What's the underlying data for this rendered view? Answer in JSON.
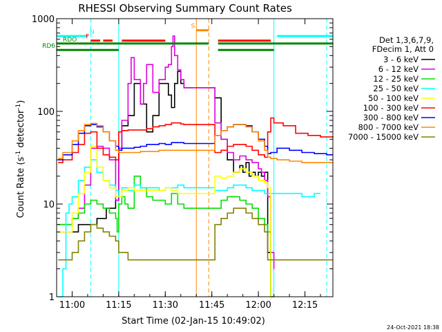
{
  "chart_data": {
    "type": "line",
    "title": "RHESSI Observing Summary Count Rates",
    "xlabel": "Start Time (02-Jan-15 10:49:02)",
    "ylabel_main": "Count Rate (s",
    "ylabel_sup1": "-1",
    "ylabel_mid": " detector",
    "ylabel_sup2": "-1",
    "ylabel_end": ")",
    "y_scale": "log",
    "ylim": [
      1,
      1000
    ],
    "xlim_minutes": [
      -5,
      84
    ],
    "x_ticks": [
      {
        "t": 0,
        "label": "11:00"
      },
      {
        "t": 15,
        "label": "11:15"
      },
      {
        "t": 30,
        "label": "11:30"
      },
      {
        "t": 45,
        "label": "11:45"
      },
      {
        "t": 60,
        "label": "12:00"
      },
      {
        "t": 75,
        "label": "12:15"
      }
    ],
    "y_ticks": [
      {
        "v": 1,
        "label": "1"
      },
      {
        "v": 10,
        "label": "10"
      },
      {
        "v": 100,
        "label": "100"
      },
      {
        "v": 1000,
        "label": "1000"
      }
    ],
    "legend_header": [
      "Det 1,3,6,7,9,",
      "FDecim 1, Att 0"
    ],
    "series": [
      {
        "name": "3 - 6 keV",
        "color": "#000000",
        "x": [
          -4.5,
          2,
          5,
          8,
          11,
          13,
          14,
          15,
          16,
          18,
          20,
          22,
          24,
          26,
          28,
          30,
          31,
          32,
          33,
          34,
          35,
          36,
          46,
          48,
          50,
          52,
          54,
          55,
          56,
          57,
          58,
          59,
          60,
          61,
          62,
          63,
          64,
          65
        ],
        "y": [
          5,
          6,
          6,
          7,
          9,
          9,
          11,
          40,
          70,
          90,
          200,
          120,
          60,
          90,
          200,
          200,
          150,
          110,
          200,
          270,
          200,
          180,
          140,
          50,
          30,
          22,
          26,
          22,
          28,
          20,
          22,
          20,
          22,
          20,
          22,
          3,
          1,
          1
        ]
      },
      {
        "name": "6 - 12 keV",
        "color": "#dd00dd",
        "x": [
          -4.5,
          0,
          2,
          4,
          6,
          8,
          10,
          12,
          14,
          15,
          16,
          18,
          19,
          20,
          22,
          23,
          24,
          26,
          28,
          30,
          31,
          32,
          32.5,
          33,
          34,
          35,
          36,
          46,
          48,
          50,
          52,
          54,
          56,
          58,
          60,
          61,
          62,
          63,
          64,
          65
        ],
        "y": [
          6,
          7,
          9,
          16,
          40,
          42,
          40,
          30,
          11,
          40,
          80,
          200,
          380,
          220,
          120,
          200,
          320,
          160,
          220,
          300,
          320,
          500,
          650,
          400,
          280,
          220,
          180,
          75,
          50,
          36,
          30,
          33,
          30,
          28,
          24,
          22,
          18,
          12,
          3,
          2
        ]
      },
      {
        "name": "12 - 25 keV",
        "color": "#00dd00",
        "x": [
          -4.5,
          0,
          2,
          4,
          6,
          8,
          10,
          12,
          14,
          14.5,
          15,
          16,
          17,
          18,
          20,
          22,
          24,
          26,
          28,
          30,
          32,
          34,
          36,
          46,
          48,
          50,
          52,
          54,
          56,
          58,
          60,
          62,
          63,
          64,
          65
        ],
        "y": [
          6,
          7,
          8,
          10,
          11,
          10,
          9,
          8,
          7,
          5,
          10,
          12,
          10,
          9,
          20,
          15,
          12,
          11,
          11,
          10,
          13,
          10,
          9,
          9,
          11,
          12,
          12,
          11,
          10,
          9,
          7,
          6,
          5,
          1,
          1
        ]
      },
      {
        "name": "25 - 50 keV",
        "color": "#00ffff",
        "x": [
          -4.5,
          -3,
          -2,
          -1,
          0,
          2,
          4,
          6,
          8,
          10,
          12,
          14,
          15,
          16,
          18,
          20,
          22,
          24,
          26,
          28,
          30,
          32,
          34,
          36,
          46,
          48,
          50,
          52,
          54,
          56,
          58,
          60,
          62,
          64,
          66,
          68,
          70,
          72,
          74,
          76,
          78,
          80
        ],
        "y": [
          1,
          2,
          8,
          10,
          12,
          18,
          25,
          30,
          22,
          18,
          16,
          14,
          12,
          15,
          14,
          16,
          15,
          15,
          15,
          14,
          15,
          15,
          16,
          15,
          14,
          14,
          15,
          16,
          16,
          15,
          14,
          14,
          13,
          13,
          13,
          13,
          13,
          13,
          12,
          12,
          13,
          13
        ]
      },
      {
        "name": "50 - 100 keV",
        "color": "#ffff00",
        "x": [
          -4.5,
          0,
          2,
          4,
          6,
          8,
          10,
          12,
          14,
          15,
          16,
          18,
          20,
          22,
          24,
          26,
          28,
          30,
          32,
          34,
          36,
          46,
          48,
          50,
          52,
          54,
          56,
          58,
          60,
          62,
          63,
          64,
          65
        ],
        "y": [
          5,
          8,
          13,
          22,
          42,
          25,
          18,
          15,
          12,
          12,
          14,
          15,
          14,
          14,
          14,
          14,
          14,
          15,
          14,
          13,
          13,
          20,
          19,
          20,
          22,
          24,
          22,
          20,
          18,
          17,
          15,
          1,
          1
        ]
      },
      {
        "name": "100 - 300 keV",
        "color": "#ff0000",
        "x": [
          -4.5,
          -3,
          0,
          2,
          4,
          6,
          8,
          10,
          12,
          14,
          15,
          16,
          18,
          20,
          22,
          24,
          26,
          28,
          30,
          32,
          34,
          35,
          36,
          46,
          48,
          50,
          52,
          54,
          56,
          58,
          60,
          62,
          63,
          64,
          65,
          68,
          72,
          76,
          80,
          84
        ],
        "y": [
          28,
          30,
          36,
          44,
          58,
          60,
          40,
          34,
          32,
          30,
          60,
          62,
          63,
          63,
          63,
          65,
          68,
          70,
          72,
          75,
          75,
          73,
          72,
          36,
          38,
          42,
          44,
          44,
          42,
          38,
          34,
          32,
          60,
          85,
          75,
          70,
          58,
          55,
          53,
          52
        ]
      },
      {
        "name": "300 - 800 keV",
        "color": "#0000ff",
        "x": [
          -4.5,
          -3,
          0,
          2,
          4,
          6,
          8,
          10,
          12,
          14,
          15,
          16,
          18,
          20,
          22,
          24,
          26,
          28,
          30,
          32,
          34,
          36,
          46,
          48,
          50,
          52,
          54,
          56,
          58,
          60,
          62,
          63,
          64,
          66,
          70,
          74,
          78,
          82,
          84
        ],
        "y": [
          30,
          34,
          44,
          58,
          70,
          72,
          68,
          60,
          48,
          42,
          38,
          40,
          40,
          41,
          42,
          44,
          44,
          45,
          44,
          46,
          46,
          45,
          55,
          62,
          68,
          72,
          72,
          70,
          60,
          50,
          42,
          35,
          36,
          40,
          38,
          36,
          35,
          34,
          34
        ]
      },
      {
        "name": "800 - 7000 keV",
        "color": "#ff8800",
        "x": [
          -4.5,
          -3,
          0,
          2,
          4,
          6,
          8,
          10,
          12,
          14,
          15,
          16,
          18,
          20,
          22,
          24,
          26,
          28,
          30,
          32,
          34,
          36,
          46,
          48,
          50,
          52,
          54,
          56,
          58,
          60,
          62,
          63,
          64,
          66,
          70,
          74,
          78,
          82,
          84
        ],
        "y": [
          31,
          36,
          48,
          62,
          72,
          74,
          70,
          60,
          48,
          38,
          36,
          36,
          36,
          36,
          37,
          37,
          37,
          38,
          38,
          38,
          38,
          38,
          55,
          62,
          68,
          72,
          72,
          68,
          60,
          48,
          38,
          32,
          31,
          30,
          29,
          28,
          28,
          28,
          28
        ]
      },
      {
        "name": "7000 - 15000 keV",
        "color": "#808000",
        "x": [
          -4.5,
          0,
          2,
          4,
          6,
          8,
          10,
          12,
          14,
          15,
          16,
          18,
          20,
          22,
          24,
          26,
          28,
          30,
          32,
          34,
          36,
          46,
          48,
          50,
          52,
          54,
          56,
          58,
          60,
          62,
          63,
          64,
          66,
          70,
          74,
          78,
          82,
          84
        ],
        "y": [
          2.5,
          3,
          4,
          5,
          6,
          5.5,
          5,
          4.5,
          4,
          3,
          3,
          2.5,
          2.5,
          2.5,
          2.5,
          2.5,
          2.5,
          2.5,
          2.5,
          2.5,
          2.5,
          6,
          7,
          8,
          9,
          9,
          8,
          7,
          6,
          5,
          2.5,
          2.5,
          2.5,
          2.5,
          2.5,
          2.5,
          2.5,
          2.5
        ]
      }
    ],
    "flag_bars": [
      {
        "label": "N",
        "color": "#00ffff",
        "y": 650,
        "segments": [
          [
            -5,
            5
          ]
        ]
      },
      {
        "label": "",
        "color": "#00ffff",
        "y": 650,
        "segments": [
          [
            66,
            84
          ]
        ]
      },
      {
        "label": "F",
        "color": "#ff0000",
        "y": 580,
        "segments": [
          [
            6,
            9
          ],
          [
            10,
            13
          ],
          [
            16,
            30
          ]
        ]
      },
      {
        "label": "",
        "color": "#ff0000",
        "y": 580,
        "segments": [
          [
            47,
            64
          ]
        ]
      },
      {
        "label": "S",
        "color": "#ff8800",
        "y": 750,
        "segments": [
          [
            40,
            44
          ]
        ]
      },
      {
        "label": "RDO",
        "color": "#008800",
        "y": 540,
        "segments": [
          [
            -5,
            15
          ],
          [
            15,
            44
          ],
          [
            47,
            65
          ],
          [
            65,
            84
          ]
        ]
      },
      {
        "label": "RD6",
        "color": "#008800",
        "y": 460,
        "segments": [
          [
            -5,
            15
          ],
          [
            47,
            65
          ]
        ]
      }
    ],
    "vertical_lines": [
      {
        "t": 6,
        "color": "#00ffff",
        "style": "dashed"
      },
      {
        "t": 15,
        "color": "#00ffff",
        "style": "solid"
      },
      {
        "t": 40,
        "color": "#ff8800",
        "style": "solid"
      },
      {
        "t": 44,
        "color": "#ff8800",
        "style": "dashed"
      },
      {
        "t": 65,
        "color": "#00ffff",
        "style": "solid"
      },
      {
        "t": 82,
        "color": "#00ffff",
        "style": "dashed"
      }
    ],
    "timestamp": "24-Oct-2021 18:38"
  }
}
